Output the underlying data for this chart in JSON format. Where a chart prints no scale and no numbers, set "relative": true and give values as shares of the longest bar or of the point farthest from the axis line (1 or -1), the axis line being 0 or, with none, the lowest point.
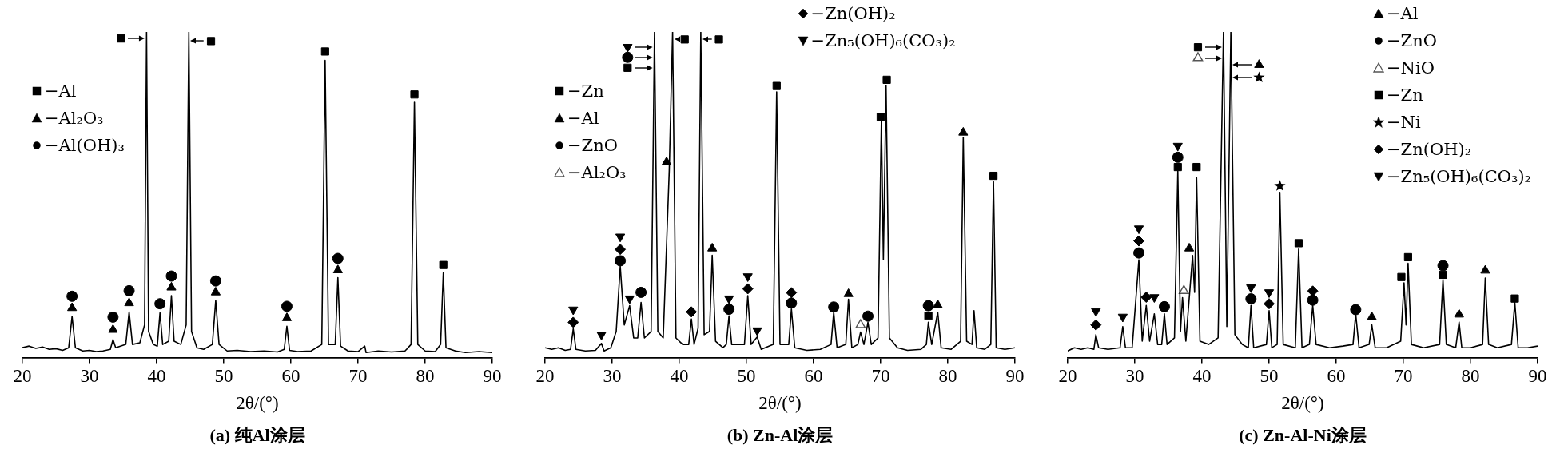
{
  "chart_data": [
    {
      "type": "line",
      "title": "(a) 纯Al涂层",
      "xlabel": "2θ/(°)",
      "xlim": [
        20,
        90
      ],
      "xticks": [
        20,
        30,
        40,
        50,
        60,
        70,
        80,
        90
      ],
      "relative": true,
      "grid": false,
      "legend": "top left",
      "series": [
        {
          "type": "line",
          "color": "#000000",
          "marker": "none",
          "x": [
            20,
            21,
            22,
            23,
            24,
            25,
            26,
            26.9,
            27.4,
            27.9,
            29,
            30,
            31,
            32,
            33.1,
            33.5,
            33.9,
            35.4,
            35.9,
            36.4,
            37.5,
            38.2,
            38.5,
            38.8,
            39.5,
            40.1,
            40.5,
            40.9,
            41.8,
            42.2,
            42.6,
            43.6,
            44.4,
            44.8,
            45.2,
            46,
            47,
            48.3,
            48.8,
            49.3,
            50.5,
            52,
            54,
            56,
            58,
            59,
            59.4,
            59.8,
            61,
            63,
            64.6,
            65.1,
            65.6,
            66.6,
            67,
            67.4,
            68.5,
            70,
            71,
            71.2,
            73,
            75,
            77,
            77.9,
            78.4,
            78.9,
            80,
            81.5,
            82.3,
            82.7,
            83.1,
            84.5,
            86,
            88,
            90
          ],
          "values": [
            0.03,
            0.035,
            0.028,
            0.032,
            0.025,
            0.027,
            0.022,
            0.03,
            0.126,
            0.03,
            0.02,
            0.022,
            0.018,
            0.02,
            0.025,
            0.055,
            0.03,
            0.04,
            0.14,
            0.04,
            0.045,
            0.1,
            1,
            0.08,
            0.04,
            0.035,
            0.137,
            0.04,
            0.05,
            0.19,
            0.05,
            0.04,
            0.1,
            1,
            0.08,
            0.03,
            0.025,
            0.04,
            0.175,
            0.04,
            0.02,
            0.022,
            0.018,
            0.02,
            0.017,
            0.025,
            0.096,
            0.022,
            0.018,
            0.02,
            0.04,
            0.913,
            0.04,
            0.04,
            0.245,
            0.035,
            0.02,
            0.018,
            0.035,
            0.015,
            0.02,
            0.017,
            0.02,
            0.04,
            0.784,
            0.04,
            0.02,
            0.018,
            0.04,
            0.26,
            0.03,
            0.02,
            0.015,
            0.018,
            0.015
          ]
        },
        {
          "type": "scatter",
          "name": "−Al",
          "color": "#000000",
          "marker": "square",
          "x": [
            34.7,
            48.1,
            65.1,
            78.4,
            82.7
          ],
          "values": [
            0.98,
            0.972,
            0.94,
            0.808,
            0.284
          ]
        },
        {
          "type": "scatter",
          "name": "−Al₂O₃",
          "color": "#000000",
          "marker": "triangle",
          "x": [
            27.4,
            33.5,
            35.9,
            42.2,
            48.8,
            59.4,
            67.0
          ],
          "values": [
            0.152,
            0.085,
            0.167,
            0.215,
            0.2,
            0.121,
            0.268
          ]
        },
        {
          "type": "scatter",
          "name": "−Al(OH)₃",
          "color": "#000000",
          "marker": "circle",
          "x": [
            27.4,
            33.5,
            35.9,
            40.5,
            42.2,
            48.8,
            59.4,
            67.0
          ],
          "values": [
            0.188,
            0.124,
            0.205,
            0.165,
            0.25,
            0.235,
            0.157,
            0.304
          ]
        }
      ]
    },
    {
      "type": "line",
      "title": "(b) Zn-Al涂层",
      "xlabel": "2θ/(°)",
      "xlim": [
        20,
        90
      ],
      "xticks": [
        20,
        30,
        40,
        50,
        60,
        70,
        80,
        90
      ],
      "relative": true,
      "grid": false,
      "legend": "top left",
      "series": [
        {
          "type": "line",
          "color": "#000000",
          "marker": "none",
          "x": [
            20,
            21,
            22,
            23,
            23.8,
            24.2,
            24.6,
            26,
            27.5,
            28.4,
            28.8,
            29.8,
            30.6,
            31.2,
            31.8,
            32.6,
            33.2,
            33.8,
            34.3,
            34.8,
            35.8,
            36.3,
            36.8,
            37.6,
            38.5,
            39.0,
            39.5,
            40.5,
            41.4,
            41.8,
            42.2,
            42.8,
            43.2,
            43.7,
            44.5,
            44.9,
            45.4,
            46.5,
            47.0,
            47.4,
            47.8,
            49.7,
            50.2,
            50.7,
            51.6,
            52.2,
            54,
            54.5,
            55,
            56.3,
            56.7,
            57.2,
            59,
            61,
            62.6,
            63.0,
            63.5,
            64.8,
            65.2,
            65.7,
            66.6,
            67,
            67.5,
            68.1,
            68.6,
            69.6,
            70.1,
            70.4,
            70.8,
            71.3,
            72.5,
            74,
            76,
            76.8,
            77.1,
            77.6,
            78.5,
            79,
            80.5,
            81.9,
            82.3,
            82.8,
            83.6,
            83.9,
            84.3,
            85.5,
            86.4,
            86.8,
            87.2,
            88.5,
            90
          ],
          "values": [
            0.03,
            0.025,
            0.03,
            0.022,
            0.025,
            0.088,
            0.025,
            0.02,
            0.022,
            0.043,
            0.02,
            0.03,
            0.08,
            0.28,
            0.1,
            0.159,
            0.06,
            0.06,
            0.169,
            0.06,
            0.08,
            1,
            0.08,
            0.06,
            0.575,
            1,
            0.06,
            0.04,
            0.04,
            0.118,
            0.04,
            0.09,
            1,
            0.07,
            0.08,
            0.314,
            0.05,
            0.03,
            0.04,
            0.128,
            0.04,
            0.04,
            0.19,
            0.04,
            0.063,
            0.025,
            0.04,
            0.816,
            0.04,
            0.04,
            0.149,
            0.03,
            0.022,
            0.025,
            0.04,
            0.139,
            0.03,
            0.04,
            0.179,
            0.03,
            0.04,
            0.078,
            0.04,
            0.108,
            0.04,
            0.06,
            0.726,
            0.3,
            0.836,
            0.06,
            0.03,
            0.022,
            0.025,
            0.04,
            0.108,
            0.04,
            0.139,
            0.03,
            0.025,
            0.05,
            0.676,
            0.05,
            0.04,
            0.144,
            0.03,
            0.025,
            0.04,
            0.54,
            0.03,
            0.025,
            0.03
          ]
        },
        {
          "type": "scatter",
          "name": "−Zn",
          "color": "#000000",
          "marker": "square",
          "x": [
            32.3,
            40.8,
            45.9,
            54.5,
            70.0,
            70.9,
            77.1,
            86.8
          ],
          "values": [
            0.89,
            0.977,
            0.977,
            0.834,
            0.739,
            0.853,
            0.128,
            0.558
          ]
        },
        {
          "type": "scatter",
          "name": "−Al",
          "color": "#000000",
          "marker": "triangle",
          "x": [
            38.1,
            44.9,
            65.2,
            78.5,
            82.3
          ],
          "values": [
            0.6,
            0.335,
            0.195,
            0.161,
            0.691
          ]
        },
        {
          "type": "scatter",
          "name": "−ZnO",
          "color": "#000000",
          "marker": "circle",
          "x": [
            32.3,
            31.2,
            34.3,
            47.4,
            56.7,
            63.0,
            68.1,
            77.1
          ],
          "values": [
            0.922,
            0.297,
            0.2,
            0.148,
            0.167,
            0.155,
            0.127,
            0.159
          ]
        },
        {
          "type": "scatter",
          "name": "−Al₂O₃",
          "color": "#555555",
          "marker": "triangle-open",
          "x": [
            67.0
          ],
          "values": [
            0.1
          ]
        },
        {
          "type": "scatter",
          "name": "−Zn(OH)₂",
          "color": "#000000",
          "marker": "diamond",
          "x": [
            24.2,
            31.2,
            41.8,
            50.2,
            56.7
          ],
          "values": [
            0.108,
            0.332,
            0.14,
            0.211,
            0.199
          ]
        },
        {
          "type": "scatter",
          "name": "−Zn₅(OH)₆(CO₃)₂",
          "color": "#000000",
          "marker": "triangle-down",
          "x": [
            32.3,
            24.2,
            28.4,
            31.2,
            32.6,
            47.4,
            50.2,
            51.6
          ],
          "values": [
            0.954,
            0.147,
            0.07,
            0.371,
            0.181,
            0.181,
            0.249,
            0.083
          ]
        }
      ]
    },
    {
      "type": "line",
      "title": "(c) Zn-Al-Ni涂层",
      "xlabel": "2θ/(°)",
      "xlim": [
        20,
        90
      ],
      "xticks": [
        20,
        30,
        40,
        50,
        60,
        70,
        80,
        90
      ],
      "relative": true,
      "grid": false,
      "legend": "top right",
      "series": [
        {
          "type": "line",
          "color": "#000000",
          "marker": "none",
          "x": [
            20,
            21,
            22,
            23,
            23.9,
            24.2,
            24.6,
            26,
            27.8,
            28.2,
            28.6,
            29.6,
            30.6,
            31.1,
            31.7,
            32.2,
            32.9,
            33.4,
            34.0,
            34.4,
            34.8,
            35.9,
            36.4,
            36.8,
            37.1,
            37.6,
            38.6,
            38.9,
            39.2,
            39.7,
            41,
            42.4,
            43.2,
            43.7,
            44.3,
            44.9,
            46,
            46.9,
            47.3,
            47.7,
            49.6,
            50.0,
            50.4,
            51.2,
            51.6,
            52.1,
            53.9,
            54.4,
            54.9,
            56,
            56.5,
            57,
            59,
            61,
            62.5,
            62.9,
            63.4,
            64.9,
            65.3,
            65.8,
            67.5,
            69.6,
            70.1,
            70.4,
            70.7,
            71.2,
            73,
            75.4,
            75.9,
            76.4,
            77.8,
            78.3,
            78.7,
            80,
            81.8,
            82.2,
            82.7,
            84,
            86.1,
            86.6,
            87.1,
            88.5,
            90
          ],
          "values": [
            0.02,
            0.03,
            0.025,
            0.03,
            0.025,
            0.07,
            0.03,
            0.025,
            0.03,
            0.095,
            0.03,
            0.03,
            0.3,
            0.05,
            0.16,
            0.05,
            0.134,
            0.04,
            0.04,
            0.134,
            0.04,
            0.06,
            0.572,
            0.08,
            0.184,
            0.05,
            0.313,
            0.2,
            0.552,
            0.05,
            0.04,
            0.06,
            1,
            0.095,
            1,
            0.07,
            0.04,
            0.03,
            0.16,
            0.03,
            0.04,
            0.144,
            0.03,
            0.04,
            0.507,
            0.04,
            0.03,
            0.333,
            0.03,
            0.04,
            0.16,
            0.04,
            0.03,
            0.035,
            0.04,
            0.134,
            0.03,
            0.04,
            0.1,
            0.03,
            0.03,
            0.05,
            0.229,
            0.1,
            0.289,
            0.04,
            0.03,
            0.04,
            0.239,
            0.04,
            0.03,
            0.109,
            0.03,
            0.03,
            0.04,
            0.244,
            0.04,
            0.03,
            0.04,
            0.169,
            0.03,
            0.03,
            0.035
          ]
        },
        {
          "type": "scatter",
          "name": "−Al",
          "color": "#000000",
          "marker": "triangle",
          "x": [
            48.5,
            38.1,
            65.3,
            78.3,
            82.2
          ],
          "values": [
            0.899,
            0.335,
            0.124,
            0.132,
            0.267
          ]
        },
        {
          "type": "scatter",
          "name": "−ZnO",
          "color": "#000000",
          "marker": "circle",
          "x": [
            36.4,
            30.6,
            34.4,
            47.3,
            56.5,
            62.9,
            75.9
          ],
          "values": [
            0.615,
            0.321,
            0.156,
            0.18,
            0.176,
            0.147,
            0.282
          ]
        },
        {
          "type": "scatter",
          "name": "−NiO",
          "color": "#555555",
          "marker": "triangle-open",
          "x": [
            39.4,
            37.3
          ],
          "values": [
            0.92,
            0.205
          ]
        },
        {
          "type": "scatter",
          "name": "−Zn",
          "color": "#000000",
          "marker": "square",
          "x": [
            39.4,
            36.4,
            39.2,
            54.4,
            69.7,
            70.7,
            75.9,
            86.6
          ],
          "values": [
            0.953,
            0.585,
            0.585,
            0.351,
            0.247,
            0.308,
            0.254,
            0.181
          ]
        },
        {
          "type": "scatter",
          "name": "−Ni",
          "color": "#000000",
          "marker": "star",
          "x": [
            48.5,
            51.6
          ],
          "values": [
            0.86,
            0.527
          ]
        },
        {
          "type": "scatter",
          "name": "−Zn(OH)₂",
          "color": "#000000",
          "marker": "diamond",
          "x": [
            24.2,
            30.6,
            31.7,
            50.0,
            56.5
          ],
          "values": [
            0.1,
            0.358,
            0.185,
            0.165,
            0.204
          ]
        },
        {
          "type": "scatter",
          "name": "−Zn₅(OH)₆(CO₃)₂",
          "color": "#000000",
          "marker": "triangle-down",
          "x": [
            24.2,
            28.2,
            30.6,
            32.9,
            36.4,
            47.3,
            50.0
          ],
          "values": [
            0.142,
            0.125,
            0.396,
            0.185,
            0.65,
            0.215,
            0.2
          ]
        }
      ]
    }
  ]
}
